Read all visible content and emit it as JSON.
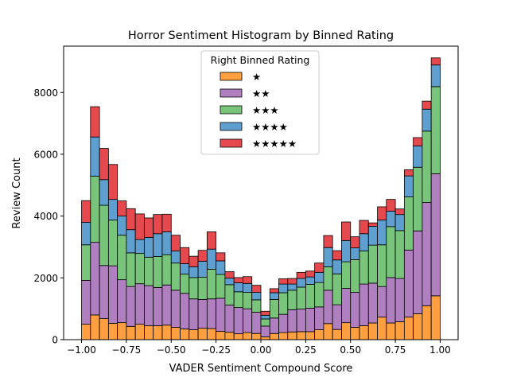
{
  "chart_data": {
    "type": "bar",
    "stacked": true,
    "title": "Horror Sentiment Histogram by Binned Rating",
    "xlabel": "VADER Sentiment Compound Score",
    "ylabel": "Review Count",
    "xlim": [
      -1.1,
      1.1
    ],
    "ylim": [
      0,
      9500
    ],
    "x_ticks": [
      -1.0,
      -0.75,
      -0.5,
      -0.25,
      0.0,
      0.25,
      0.5,
      0.75,
      1.0
    ],
    "x_tick_labels": [
      "−1.00",
      "−0.75",
      "−0.50",
      "−0.25",
      "0.00",
      "0.25",
      "0.50",
      "0.75",
      "1.00"
    ],
    "y_ticks": [
      0,
      2000,
      4000,
      6000,
      8000
    ],
    "y_tick_labels": [
      "0",
      "2000",
      "4000",
      "6000",
      "8000"
    ],
    "grid": false,
    "legend": {
      "title": "Right Binned Rating",
      "placement": "upper center"
    },
    "bin_edges": [
      -1.0,
      -0.95,
      -0.9,
      -0.85,
      -0.8,
      -0.75,
      -0.7,
      -0.65,
      -0.6,
      -0.55,
      -0.5,
      -0.45,
      -0.4,
      -0.35,
      -0.3,
      -0.25,
      -0.2,
      -0.15,
      -0.1,
      -0.05,
      0.0,
      0.05,
      0.1,
      0.15,
      0.2,
      0.25,
      0.3,
      0.35,
      0.4,
      0.45,
      0.5,
      0.55,
      0.6,
      0.65,
      0.7,
      0.75,
      0.8,
      0.85,
      0.9,
      0.95,
      1.0
    ],
    "series": [
      {
        "name": "★",
        "color": "#ff9f40",
        "values": [
          500,
          800,
          680,
          530,
          550,
          430,
          500,
          450,
          450,
          470,
          400,
          350,
          320,
          370,
          360,
          270,
          240,
          190,
          230,
          200,
          90,
          200,
          230,
          250,
          260,
          260,
          320,
          520,
          330,
          550,
          400,
          450,
          540,
          730,
          540,
          580,
          730,
          840,
          1100,
          1420
        ]
      },
      {
        "name": "★★",
        "color": "#b07fc0",
        "values": [
          1420,
          2350,
          1720,
          1860,
          1390,
          1290,
          1310,
          1300,
          1240,
          1300,
          1200,
          1150,
          1000,
          930,
          960,
          1070,
          880,
          850,
          770,
          690,
          350,
          500,
          590,
          720,
          730,
          760,
          740,
          1080,
          800,
          1110,
          1130,
          1350,
          1290,
          990,
          1470,
          1400,
          2170,
          2680,
          3340,
          3950
        ]
      },
      {
        "name": "★★★",
        "color": "#77c47a",
        "values": [
          1150,
          2140,
          1950,
          1480,
          1440,
          1090,
          980,
          920,
          1000,
          980,
          880,
          620,
          690,
          720,
          960,
          770,
          660,
          510,
          530,
          400,
          230,
          600,
          700,
          630,
          710,
          770,
          790,
          760,
          1000,
          860,
          1060,
          1070,
          1230,
          1350,
          1650,
          1550,
          1720,
          2060,
          2310,
          2820
        ]
      },
      {
        "name": "★★★★",
        "color": "#5e9fd0",
        "values": [
          730,
          1270,
          830,
          670,
          620,
          750,
          450,
          640,
          740,
          740,
          390,
          340,
          350,
          520,
          650,
          440,
          210,
          290,
          290,
          240,
          120,
          220,
          280,
          200,
          280,
          240,
          330,
          620,
          450,
          690,
          380,
          560,
          610,
          800,
          500,
          520,
          680,
          690,
          710,
          700
        ]
      },
      {
        "name": "★★★★★",
        "color": "#e5484d",
        "values": [
          700,
          980,
          1010,
          1130,
          490,
          680,
          830,
          630,
          620,
          570,
          510,
          520,
          340,
          350,
          560,
          260,
          210,
          170,
          220,
          230,
          130,
          130,
          170,
          180,
          200,
          190,
          300,
          390,
          300,
          600,
          360,
          430,
          110,
          430,
          380,
          180,
          200,
          270,
          260,
          230
        ]
      }
    ]
  }
}
